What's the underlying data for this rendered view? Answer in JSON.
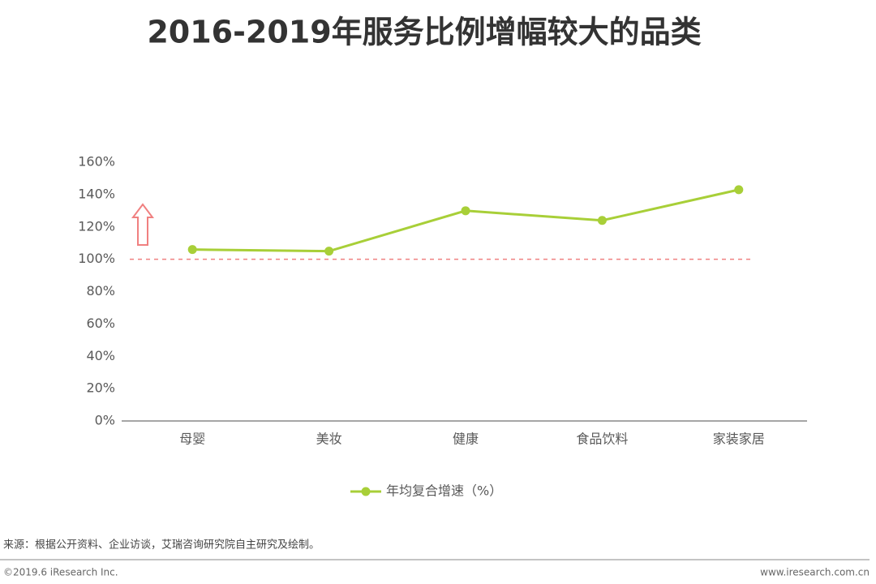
{
  "chart_data": {
    "type": "line",
    "title": "2016-2019年服务比例增幅较大的品类",
    "categories": [
      "母婴",
      "美妆",
      "健康",
      "食品饮料",
      "家装家居"
    ],
    "series": [
      {
        "name": "年均复合增速（%）",
        "color": "#a8cf38",
        "values": [
          106,
          105,
          130,
          124,
          143
        ]
      }
    ],
    "ylim": [
      0,
      160
    ],
    "yticks": [
      {
        "value": 0,
        "label": "0%"
      },
      {
        "value": 20,
        "label": "20%"
      },
      {
        "value": 40,
        "label": "40%"
      },
      {
        "value": 60,
        "label": "60%"
      },
      {
        "value": 80,
        "label": "80%"
      },
      {
        "value": 100,
        "label": "100%"
      },
      {
        "value": 120,
        "label": "120%"
      },
      {
        "value": 140,
        "label": "140%"
      },
      {
        "value": 160,
        "label": "160%"
      }
    ],
    "reference_line": {
      "value": 100,
      "color": "#f08080"
    },
    "legend": "bottom"
  },
  "footer": {
    "source": "来源：根据公开资料、企业访谈，艾瑞咨询研究院自主研究及绘制。",
    "copyright": "©2019.6 iResearch Inc.",
    "url": "www.iresearch.com.cn"
  }
}
